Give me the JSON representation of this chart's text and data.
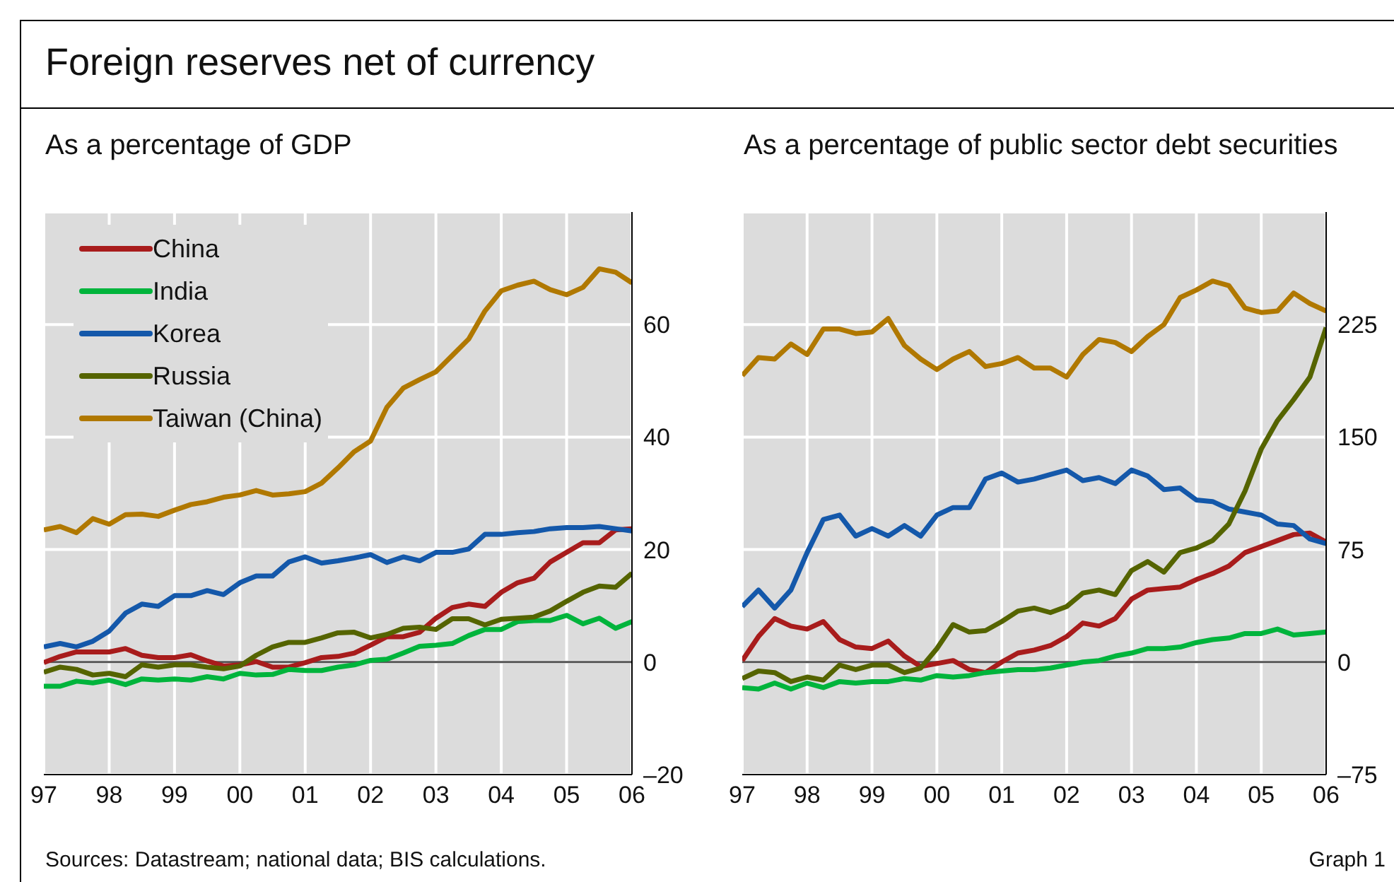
{
  "chart_data": [
    {
      "type": "line",
      "title": "Foreign reserves net of currency",
      "subtitle": "As a percentage of GDP",
      "x": [
        1997,
        1997.25,
        1997.5,
        1997.75,
        1998,
        1998.25,
        1998.5,
        1998.75,
        1999,
        1999.25,
        1999.5,
        1999.75,
        2000,
        2000.25,
        2000.5,
        2000.75,
        2001,
        2001.25,
        2001.5,
        2001.75,
        2002,
        2002.25,
        2002.5,
        2002.75,
        2003,
        2003.25,
        2003.5,
        2003.75,
        2004,
        2004.25,
        2004.5,
        2004.75,
        2005,
        2005.25,
        2005.5,
        2005.75,
        2006
      ],
      "series": [
        {
          "name": "China",
          "color": "#a81c1c",
          "values": [
            -0.1,
            1,
            1.8,
            1.8,
            1.8,
            2.4,
            1.2,
            0.8,
            0.8,
            1.3,
            0.2,
            -0.7,
            -0.5,
            0.1,
            -0.9,
            -0.9,
            -0.1,
            0.8,
            1,
            1.6,
            3,
            4.5,
            4.5,
            5.3,
            7.8,
            9.7,
            10.3,
            9.9,
            12.4,
            14.1,
            14.9,
            17.8,
            19.5,
            21.2,
            21.2,
            23.5,
            23.7
          ]
        },
        {
          "name": "India",
          "color": "#00b43c",
          "values": [
            -4.3,
            -4.3,
            -3.4,
            -3.7,
            -3.2,
            -4,
            -3,
            -3.2,
            -3,
            -3.2,
            -2.6,
            -3,
            -2,
            -2.3,
            -2.2,
            -1.3,
            -1.5,
            -1.5,
            -0.9,
            -0.5,
            0.3,
            0.5,
            1.6,
            2.8,
            3,
            3.3,
            4.7,
            5.8,
            5.8,
            7.2,
            7.4,
            7.4,
            8.3,
            6.8,
            7.8,
            6,
            7.2
          ]
        },
        {
          "name": "Korea",
          "color": "#1458aa",
          "values": [
            2.7,
            3.3,
            2.7,
            3.7,
            5.5,
            8.7,
            10.3,
            9.9,
            11.8,
            11.8,
            12.7,
            12,
            14.1,
            15.3,
            15.3,
            17.8,
            18.7,
            17.6,
            18,
            18.5,
            19.1,
            17.7,
            18.7,
            18,
            19.5,
            19.5,
            20.1,
            22.7,
            22.7,
            23,
            23.2,
            23.7,
            23.9,
            23.9,
            24.1,
            23.7,
            23.3
          ]
        },
        {
          "name": "Russia",
          "color": "#556400",
          "values": [
            -1.8,
            -0.9,
            -1.3,
            -2.3,
            -2,
            -2.6,
            -0.5,
            -0.9,
            -0.5,
            -0.5,
            -0.9,
            -1.2,
            -0.7,
            1.2,
            2.7,
            3.5,
            3.5,
            4.3,
            5.2,
            5.3,
            4.3,
            4.9,
            6,
            6.2,
            5.8,
            7.7,
            7.7,
            6.6,
            7.6,
            7.8,
            8,
            9.1,
            10.8,
            12.4,
            13.5,
            13.3,
            15.8
          ]
        },
        {
          "name": "Taiwan (China)",
          "color": "#b07800",
          "values": [
            23.5,
            24.1,
            23,
            25.5,
            24.5,
            26.2,
            26.3,
            25.9,
            27,
            28,
            28.5,
            29.3,
            29.7,
            30.5,
            29.7,
            29.9,
            30.3,
            31.8,
            34.5,
            37.4,
            39.3,
            45.3,
            48.7,
            50.2,
            51.6,
            54.5,
            57.4,
            62.4,
            66,
            67,
            67.7,
            66.2,
            65.3,
            66.6,
            69.9,
            69.3,
            67.4
          ]
        }
      ],
      "xlim": [
        1997,
        2006
      ],
      "xticks": [
        {
          "value": 1997,
          "label": "97"
        },
        {
          "value": 1998,
          "label": "98"
        },
        {
          "value": 1999,
          "label": "99"
        },
        {
          "value": 2000,
          "label": "00"
        },
        {
          "value": 2001,
          "label": "01"
        },
        {
          "value": 2002,
          "label": "02"
        },
        {
          "value": 2003,
          "label": "03"
        },
        {
          "value": 2004,
          "label": "04"
        },
        {
          "value": 2005,
          "label": "05"
        },
        {
          "value": 2006,
          "label": "06"
        }
      ],
      "ylim": [
        -20,
        80
      ],
      "yticks": [
        {
          "value": -20,
          "label": "–20"
        },
        0,
        20,
        40,
        60
      ],
      "ref_lines": [
        {
          "axis": "y",
          "value": 0,
          "label": null,
          "color": "#555555"
        }
      ],
      "grid": true,
      "legend": "top left",
      "annotations": [
        "Sources: Datastream; national data; BIS calculations.",
        "Graph 1"
      ]
    },
    {
      "type": "line",
      "subtitle": "As a percentage of public sector debt securities",
      "x": [
        1997,
        1997.25,
        1997.5,
        1997.75,
        1998,
        1998.25,
        1998.5,
        1998.75,
        1999,
        1999.25,
        1999.5,
        1999.75,
        2000,
        2000.25,
        2000.5,
        2000.75,
        2001,
        2001.25,
        2001.5,
        2001.75,
        2002,
        2002.25,
        2002.5,
        2002.75,
        2003,
        2003.25,
        2003.5,
        2003.75,
        2004,
        2004.25,
        2004.5,
        2004.75,
        2005,
        2005.25,
        2005.5,
        2005.75,
        2006
      ],
      "series": [
        {
          "color": "#a81c1c",
          "values": [
            1,
            17,
            29,
            24,
            22,
            27,
            15,
            10,
            9,
            14,
            4,
            -3,
            -1,
            1,
            -5,
            -7,
            0,
            6,
            8,
            11,
            17,
            26,
            24,
            29,
            42,
            48,
            49,
            50,
            55,
            59,
            64,
            73,
            77,
            81,
            85,
            86,
            80
          ]
        },
        {
          "color": "#00b43c",
          "values": [
            -17,
            -18,
            -14,
            -18,
            -14,
            -17,
            -13,
            -14,
            -13,
            -13,
            -11,
            -12,
            -9,
            -10,
            -9,
            -7,
            -6,
            -5,
            -5,
            -4,
            -2,
            0,
            1,
            4,
            6,
            9,
            9,
            10,
            13,
            15,
            16,
            19,
            19,
            22,
            18,
            19,
            20
          ]
        },
        {
          "color": "#1458aa",
          "values": [
            37,
            48,
            36,
            48,
            73,
            95,
            98,
            84,
            89,
            84,
            91,
            84,
            98,
            103,
            103,
            122,
            126,
            120,
            122,
            125,
            128,
            121,
            123,
            119,
            128,
            124,
            115,
            116,
            108,
            107,
            102,
            100,
            98,
            92,
            91,
            82,
            79
          ]
        },
        {
          "color": "#556400",
          "values": [
            -11,
            -6,
            -7,
            -13,
            -10,
            -12,
            -2,
            -5,
            -2,
            -2,
            -7,
            -4,
            9,
            25,
            20,
            21,
            27,
            34,
            36,
            33,
            37,
            46,
            48,
            45,
            61,
            67,
            60,
            73,
            76,
            81,
            92,
            114,
            142,
            161,
            175,
            190,
            223
          ]
        },
        {
          "color": "#b07800",
          "values": [
            191,
            203,
            202,
            212,
            205,
            222,
            222,
            219,
            220,
            229,
            211,
            202,
            195,
            202,
            207,
            197,
            199,
            203,
            196,
            196,
            190,
            205,
            215,
            213,
            207,
            217,
            225,
            243,
            248,
            254,
            251,
            236,
            233,
            234,
            246,
            239,
            234
          ]
        }
      ],
      "xlim": [
        1997,
        2006
      ],
      "xticks": [
        {
          "value": 1997,
          "label": "97"
        },
        {
          "value": 1998,
          "label": "98"
        },
        {
          "value": 1999,
          "label": "99"
        },
        {
          "value": 2000,
          "label": "00"
        },
        {
          "value": 2001,
          "label": "01"
        },
        {
          "value": 2002,
          "label": "02"
        },
        {
          "value": 2003,
          "label": "03"
        },
        {
          "value": 2004,
          "label": "04"
        },
        {
          "value": 2005,
          "label": "05"
        },
        {
          "value": 2006,
          "label": "06"
        }
      ],
      "ylim": [
        -75,
        300
      ],
      "yticks": [
        {
          "value": -75,
          "label": "–75"
        },
        0,
        75,
        150,
        225
      ],
      "ref_lines": [
        {
          "axis": "y",
          "value": 0,
          "label": null,
          "color": "#555555"
        }
      ],
      "grid": true
    }
  ]
}
